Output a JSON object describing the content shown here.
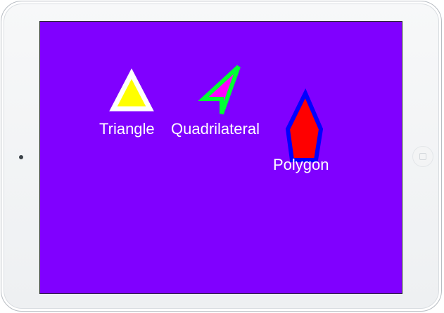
{
  "screen": {
    "background_color": "#8000ff"
  },
  "shapes": {
    "triangle": {
      "label": "Triangle",
      "fill_color": "#ffff00",
      "stroke_color": "#ffffff"
    },
    "quadrilateral": {
      "label": "Quadrilateral",
      "fill_color": "#ff00ff",
      "stroke_color": "#00ff33"
    },
    "polygon": {
      "label": "Polygon",
      "fill_color": "#ff0000",
      "stroke_color": "#0000ff"
    }
  },
  "device": {
    "camera_icon": "camera-icon",
    "home_button_icon": "home-button-icon"
  }
}
